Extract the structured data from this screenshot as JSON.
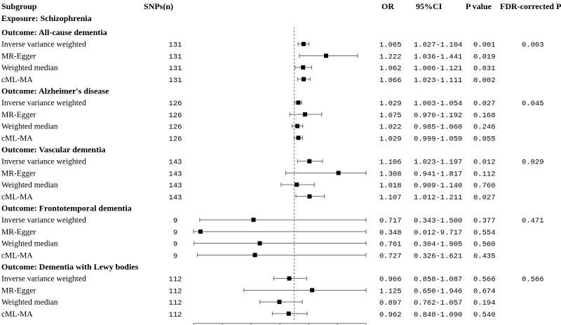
{
  "headers": {
    "subgroup": "Subgroup",
    "snps": "SNPs(n)",
    "or": "OR",
    "ci": "95%CI",
    "p": "P value",
    "fdr": "FDR-corrected P"
  },
  "exposure_label": "Exposure: Schizophrenia",
  "chart_data": {
    "type": "forest",
    "xlim": [
      0.3,
      1.5
    ],
    "ticks": [
      "0.30",
      "0.50",
      "0.70",
      "0.90",
      "1.10",
      "1.30",
      "1.50"
    ],
    "reference_line": 1.0,
    "outcomes": [
      {
        "label": "Outcome: All-cause dementia",
        "fdr": "0.003",
        "rows": [
          {
            "method": "Inverse variance weighted",
            "snps": "131",
            "or": 1.065,
            "lo": 1.027,
            "hi": 1.104,
            "or_text": "1.065",
            "ci_text": "1.027-1.104",
            "p": "0.001"
          },
          {
            "method": "MR-Egger",
            "snps": "131",
            "or": 1.222,
            "lo": 1.036,
            "hi": 1.441,
            "or_text": "1.222",
            "ci_text": "1.036-1.441",
            "p": "0.019"
          },
          {
            "method": "Weighted median",
            "snps": "131",
            "or": 1.062,
            "lo": 1.006,
            "hi": 1.121,
            "or_text": "1.062",
            "ci_text": "1.006-1.121",
            "p": "0.031"
          },
          {
            "method": "cML-MA",
            "snps": "131",
            "or": 1.066,
            "lo": 1.023,
            "hi": 1.111,
            "or_text": "1.066",
            "ci_text": "1.023-1.111",
            "p": "0.002"
          }
        ]
      },
      {
        "label": "Outcome: Alzheimer's disease",
        "fdr": "0.045",
        "rows": [
          {
            "method": "Inverse variance weighted",
            "snps": "126",
            "or": 1.029,
            "lo": 1.003,
            "hi": 1.054,
            "or_text": "1.029",
            "ci_text": "1.003-1.054",
            "p": "0.027"
          },
          {
            "method": "MR-Egger",
            "snps": "126",
            "or": 1.075,
            "lo": 0.97,
            "hi": 1.192,
            "or_text": "1.075",
            "ci_text": "0.970-1.192",
            "p": "0.168"
          },
          {
            "method": "Weighted median",
            "snps": "126",
            "or": 1.022,
            "lo": 0.985,
            "hi": 1.06,
            "or_text": "1.022",
            "ci_text": "0.985-1.060",
            "p": "0.246"
          },
          {
            "method": "cML-MA",
            "snps": "126",
            "or": 1.029,
            "lo": 0.999,
            "hi": 1.059,
            "or_text": "1.029",
            "ci_text": "0.999-1.059",
            "p": "0.055"
          }
        ]
      },
      {
        "label": "Outcome: Vascular dementia",
        "fdr": "0.029",
        "rows": [
          {
            "method": "Inverse variance weighted",
            "snps": "143",
            "or": 1.106,
            "lo": 1.023,
            "hi": 1.197,
            "or_text": "1.106",
            "ci_text": "1.023-1.197",
            "p": "0.012"
          },
          {
            "method": "MR-Egger",
            "snps": "143",
            "or": 1.308,
            "lo": 0.941,
            "hi": 1.817,
            "or_text": "1.308",
            "ci_text": "0.941-1.817",
            "p": "0.112"
          },
          {
            "method": "Weighted median",
            "snps": "143",
            "or": 1.018,
            "lo": 0.909,
            "hi": 1.14,
            "or_text": "1.018",
            "ci_text": "0.909-1.140",
            "p": "0.760"
          },
          {
            "method": "cML-MA",
            "snps": "143",
            "or": 1.107,
            "lo": 1.012,
            "hi": 1.211,
            "or_text": "1.107",
            "ci_text": "1.012-1.211",
            "p": "0.027"
          }
        ]
      },
      {
        "label": "Outcome: Frontotemporal dementia",
        "fdr": "0.471",
        "rows": [
          {
            "method": "Inverse variance weighted",
            "snps": "9",
            "or": 0.717,
            "lo": 0.343,
            "hi": 1.5,
            "or_text": "0.717",
            "ci_text": "0.343-1.500",
            "p": "0.377"
          },
          {
            "method": "MR-Egger",
            "snps": "9",
            "or": 0.348,
            "lo": 0.012,
            "hi": 9.717,
            "or_text": "0.348",
            "ci_text": "0.012-9.717",
            "p": "0.554"
          },
          {
            "method": "Weighted median",
            "snps": "9",
            "or": 0.761,
            "lo": 0.304,
            "hi": 1.905,
            "or_text": "0.761",
            "ci_text": "0.304-1.905",
            "p": "0.560"
          },
          {
            "method": "cML-MA",
            "snps": "9",
            "or": 0.727,
            "lo": 0.326,
            "hi": 1.621,
            "or_text": "0.727",
            "ci_text": "0.326-1.621",
            "p": "0.435"
          }
        ]
      },
      {
        "label": "Outcome: Dementia with Lewy bodies",
        "fdr": "0.566",
        "rows": [
          {
            "method": "Inverse variance weighted",
            "snps": "112",
            "or": 0.966,
            "lo": 0.858,
            "hi": 1.087,
            "or_text": "0.966",
            "ci_text": "0.858-1.087",
            "p": "0.566"
          },
          {
            "method": "MR-Egger",
            "snps": "112",
            "or": 1.125,
            "lo": 0.65,
            "hi": 1.946,
            "or_text": "1.125",
            "ci_text": "0.650-1.946",
            "p": "0.674"
          },
          {
            "method": "Weighted median",
            "snps": "112",
            "or": 0.897,
            "lo": 0.762,
            "hi": 1.057,
            "or_text": "0.897",
            "ci_text": "0.762-1.057",
            "p": "0.194"
          },
          {
            "method": "cML-MA",
            "snps": "112",
            "or": 0.962,
            "lo": 0.848,
            "hi": 1.09,
            "or_text": "0.962",
            "ci_text": "0.848-1.090",
            "p": "0.540"
          }
        ]
      }
    ]
  }
}
